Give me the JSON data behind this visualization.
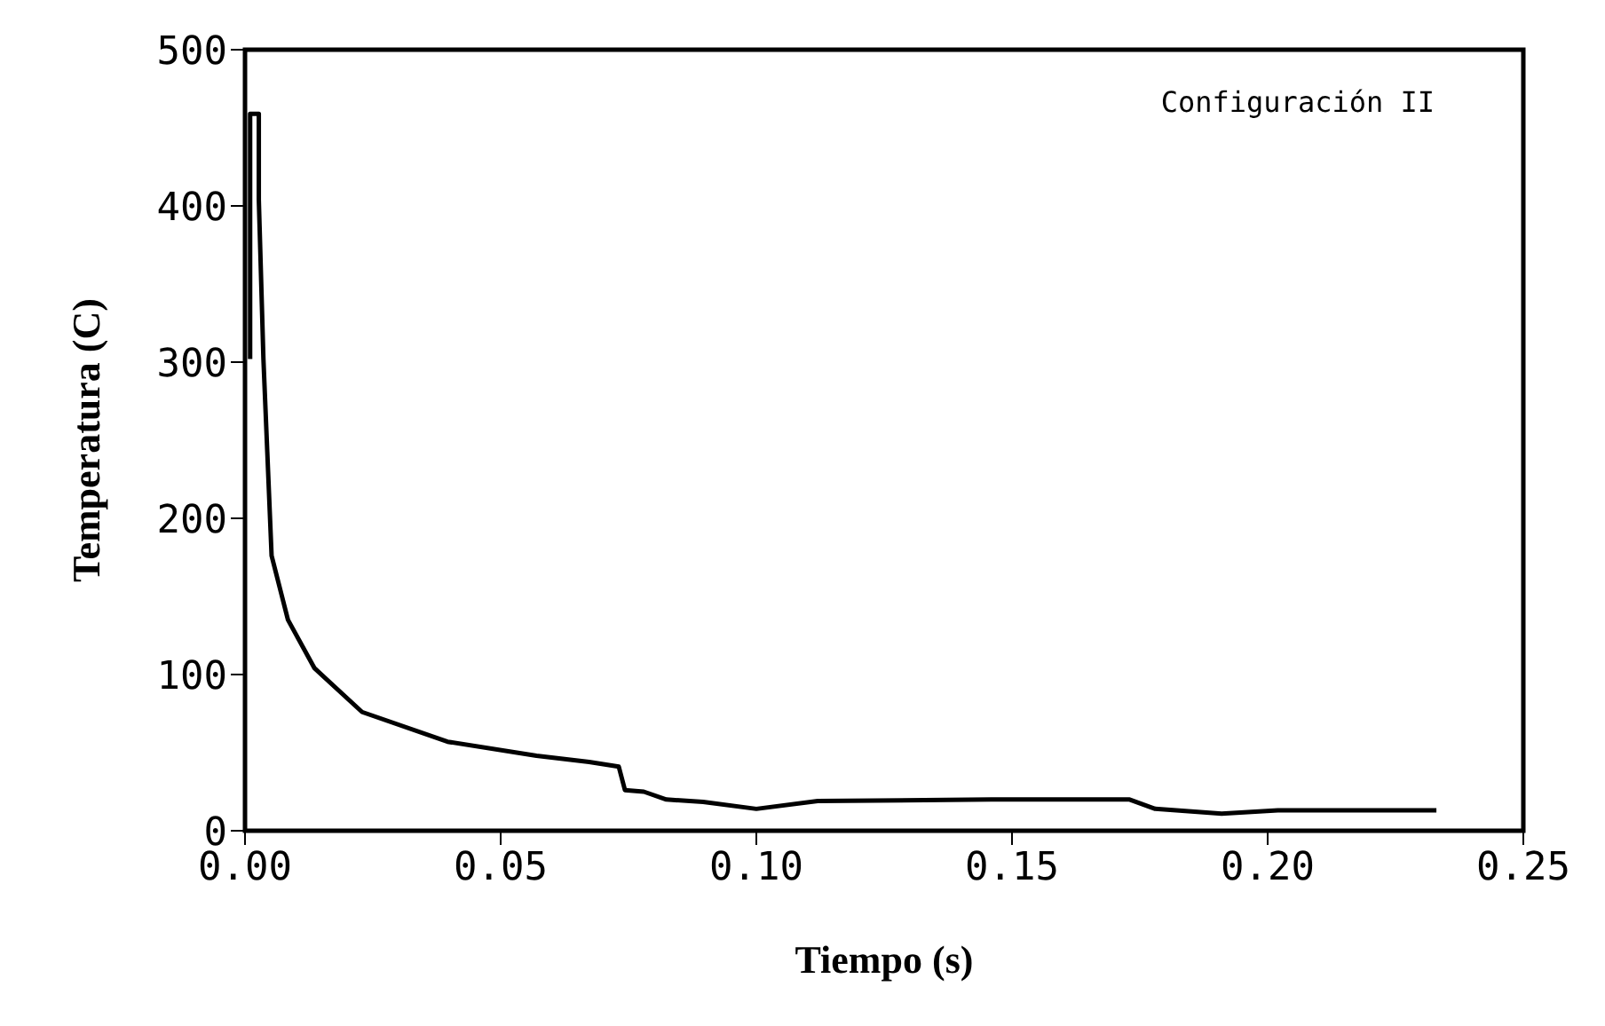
{
  "chart_data": {
    "type": "line",
    "xlabel": "Tiempo  (s)",
    "ylabel": "Temperatura  (C)",
    "annotations": [
      "Configuración II"
    ],
    "series": [
      {
        "color": "#000000",
        "x": [
          0.001,
          0.001,
          0.0027,
          0.0027,
          0.0036,
          0.0052,
          0.0084,
          0.0136,
          0.0229,
          0.0396,
          0.057,
          0.0673,
          0.0731,
          0.0743,
          0.078,
          0.0824,
          0.0896,
          0.1,
          0.112,
          0.146,
          0.173,
          0.178,
          0.191,
          0.202,
          0.233
        ],
        "values": [
          302,
          459,
          459,
          404,
          302,
          176,
          135,
          104,
          76,
          57,
          48,
          44,
          41,
          26,
          25,
          20,
          18.5,
          14,
          19,
          20,
          20,
          14,
          11,
          13,
          13
        ]
      }
    ],
    "xlim": [
      0,
      0.25
    ],
    "xticks": [
      {
        "value": 0,
        "label": "0.00"
      },
      {
        "value": 0.05,
        "label": "0.05"
      },
      {
        "value": 0.1,
        "label": "0.10"
      },
      {
        "value": 0.15,
        "label": "0.15"
      },
      {
        "value": 0.2,
        "label": "0.20"
      },
      {
        "value": 0.25,
        "label": "0.25"
      }
    ],
    "ylim": [
      0,
      500
    ],
    "yticks": [
      0,
      100,
      200,
      300,
      400,
      500
    ],
    "grid": false,
    "legend": false,
    "marker": "none",
    "line_style": "solid"
  }
}
